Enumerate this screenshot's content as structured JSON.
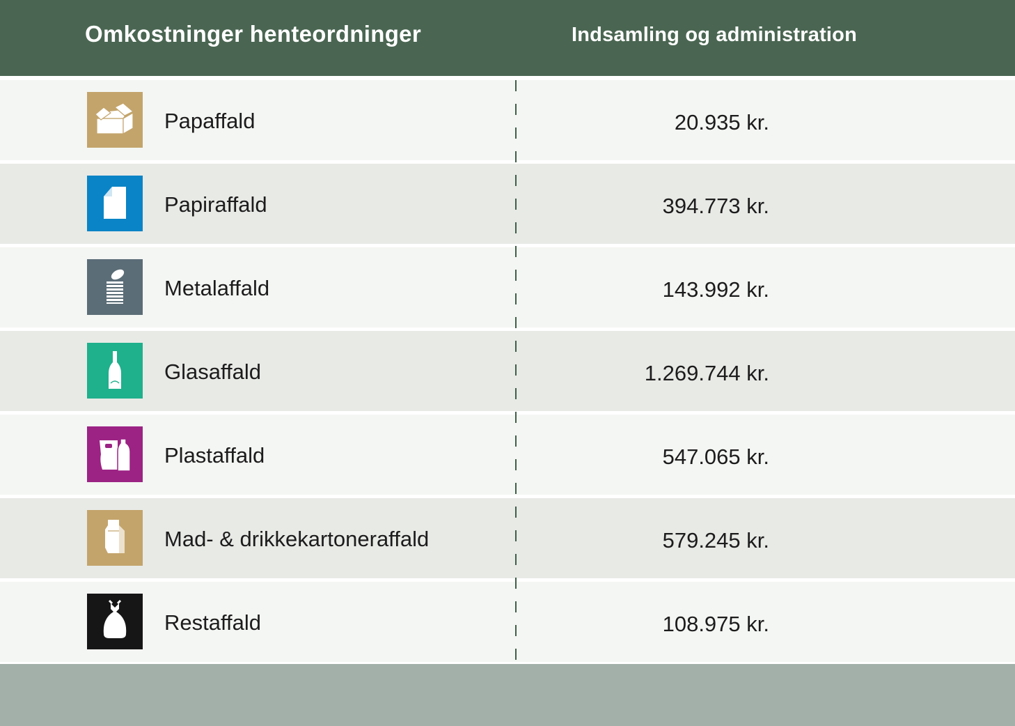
{
  "header": {
    "col1": "Omkostninger henteordninger",
    "col2": "Indsamling og administration"
  },
  "rows": [
    {
      "label": "Papaffald",
      "value": "20.935 kr.",
      "icon": "cardboard-box-icon",
      "color": "#c3a46b"
    },
    {
      "label": "Papiraffald",
      "value": "394.773 kr.",
      "icon": "paper-sheet-icon",
      "color": "#0a84c6"
    },
    {
      "label": "Metalaffald",
      "value": "143.992 kr.",
      "icon": "tin-can-icon",
      "color": "#5b6d77"
    },
    {
      "label": "Glasaffald",
      "value": "1.269.744 kr.",
      "icon": "bottle-icon",
      "color": "#1fb08c"
    },
    {
      "label": "Plastaffald",
      "value": "547.065 kr.",
      "icon": "plastic-bag-bottle-icon",
      "color": "#9c2384"
    },
    {
      "label": "Mad- & drikkekartoneraffald",
      "value": "579.245 kr.",
      "icon": "milk-carton-icon",
      "color": "#c3a46b"
    },
    {
      "label": "Restaffald",
      "value": "108.975 kr.",
      "icon": "trash-bag-icon",
      "color": "#161616"
    }
  ],
  "colors": {
    "header_bg": "#4a6652",
    "row_light": "#f4f6f3",
    "row_dark": "#e8eae6",
    "footer_bg": "#a2b0a9",
    "divider": "#3e5f48"
  }
}
